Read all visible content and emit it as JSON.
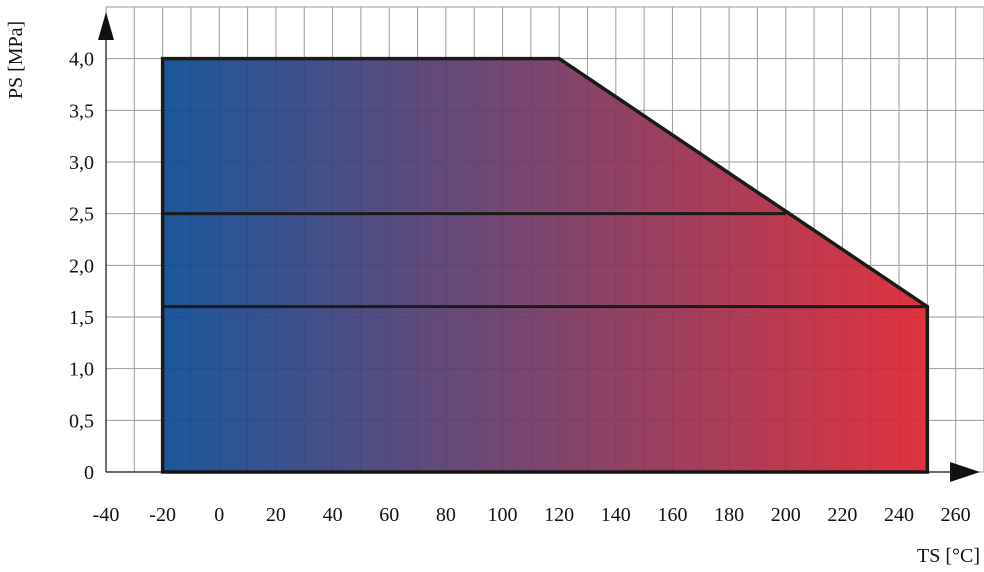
{
  "chart_data": {
    "type": "area",
    "xlabel": "TS [°C]",
    "ylabel": "PS [MPa]",
    "xlim": [
      -40,
      270
    ],
    "ylim": [
      0,
      4.5
    ],
    "x_ticks": [
      {
        "value": -40,
        "label": "-40"
      },
      {
        "value": -20,
        "label": "-20"
      },
      {
        "value": 0,
        "label": "0"
      },
      {
        "value": 20,
        "label": "20"
      },
      {
        "value": 40,
        "label": "40"
      },
      {
        "value": 60,
        "label": "60"
      },
      {
        "value": 80,
        "label": "80"
      },
      {
        "value": 100,
        "label": "100"
      },
      {
        "value": 120,
        "label": "120"
      },
      {
        "value": 140,
        "label": "140"
      },
      {
        "value": 160,
        "label": "160"
      },
      {
        "value": 180,
        "label": "180"
      },
      {
        "value": 200,
        "label": "200"
      },
      {
        "value": 220,
        "label": "220"
      },
      {
        "value": 240,
        "label": "240"
      },
      {
        "value": 260,
        "label": "260"
      }
    ],
    "y_ticks": [
      {
        "value": 0,
        "label": "0"
      },
      {
        "value": 0.5,
        "label": "0,5"
      },
      {
        "value": 1.0,
        "label": "1,0"
      },
      {
        "value": 1.5,
        "label": "1,5"
      },
      {
        "value": 2.0,
        "label": "2,0"
      },
      {
        "value": 2.5,
        "label": "2,5"
      },
      {
        "value": 3.0,
        "label": "3,0"
      },
      {
        "value": 3.5,
        "label": "3,5"
      },
      {
        "value": 4.0,
        "label": "4,0"
      }
    ],
    "grid": true,
    "envelope": [
      {
        "x": -20,
        "y": 0
      },
      {
        "x": -20,
        "y": 4.0
      },
      {
        "x": 120,
        "y": 4.0
      },
      {
        "x": 250,
        "y": 1.6
      },
      {
        "x": 250,
        "y": 0
      }
    ],
    "horizontal_lines": [
      {
        "y": 2.5,
        "x_start": -20,
        "x_end": 200
      },
      {
        "y": 1.6,
        "x_start": -20,
        "x_end": 250
      }
    ],
    "gradient_colors": [
      "#0b4a94",
      "#dd2430"
    ]
  }
}
